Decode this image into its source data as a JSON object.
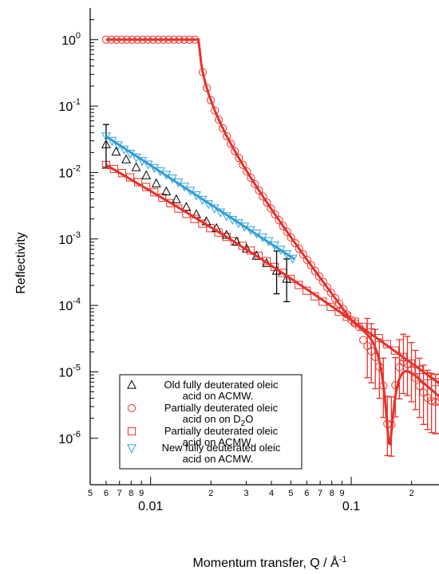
{
  "chart_data": {
    "type": "scatter",
    "title": "",
    "xlabel": "Momentum transfer, Q / Å",
    "xlabel_sup": "-1",
    "ylabel": "Reflectivity",
    "x_scale": "log",
    "y_scale": "log",
    "xlim": [
      0.005,
      0.3
    ],
    "ylim": [
      2e-07,
      3
    ],
    "legend_position": "bottom-left",
    "y_ticks": [
      {
        "mantissa": "10",
        "exp": "0",
        "value": 1
      },
      {
        "mantissa": "10",
        "exp": "-1",
        "value": 0.1
      },
      {
        "mantissa": "10",
        "exp": "-2",
        "value": 0.01
      },
      {
        "mantissa": "10",
        "exp": "-3",
        "value": 0.001
      },
      {
        "mantissa": "10",
        "exp": "-4",
        "value": 0.0001
      },
      {
        "mantissa": "10",
        "exp": "-5",
        "value": 1e-05
      },
      {
        "mantissa": "10",
        "exp": "-6",
        "value": 1e-06
      }
    ],
    "x_major_ticks": [
      {
        "label": "0.01",
        "value": 0.01
      },
      {
        "label": "0.1",
        "value": 0.1
      }
    ],
    "x_minor_ticks": [
      {
        "label": "5",
        "value": 0.005
      },
      {
        "label": "6",
        "value": 0.006
      },
      {
        "label": "7",
        "value": 0.007
      },
      {
        "label": "8",
        "value": 0.008
      },
      {
        "label": "9",
        "value": 0.009
      },
      {
        "label": "2",
        "value": 0.02
      },
      {
        "label": "3",
        "value": 0.03
      },
      {
        "label": "4",
        "value": 0.04
      },
      {
        "label": "5",
        "value": 0.05
      },
      {
        "label": "6",
        "value": 0.06
      },
      {
        "label": "7",
        "value": 0.07
      },
      {
        "label": "8",
        "value": 0.08
      },
      {
        "label": "9",
        "value": 0.09
      },
      {
        "label": "2",
        "value": 0.2
      }
    ],
    "series": [
      {
        "key": "old",
        "legend_lines": [
          "Old fully deuterated oleic",
          "acid on ACMW."
        ],
        "marker": "triangle-up",
        "color": "#000000",
        "q_range": [
          0.006,
          0.052
        ],
        "r_start": 0.025,
        "r_end": 0.0002,
        "step": 0.05,
        "err_from_q": 0.04,
        "fit": null
      },
      {
        "key": "partial_d2o",
        "legend_lines": [
          "Partially deuterated oleic",
          "acid on  on D",
          "O"
        ],
        "legend_sub": "2",
        "marker": "circle",
        "color": "#e8312a",
        "fit": {
          "color": "#e8312a"
        }
      },
      {
        "key": "partial_acmw",
        "legend_lines": [
          "Partially deuterated oleic",
          "acid on ACMW."
        ],
        "marker": "square",
        "color": "#e8312a",
        "q_range": [
          0.006,
          0.3
        ],
        "r_start": 0.013,
        "r_end": 5.5e-06,
        "step": 0.04,
        "fit": {
          "color": "#e8312a"
        }
      },
      {
        "key": "new",
        "legend_lines": [
          "New fully deuterated oleic",
          "acid on ACMW."
        ],
        "marker": "triangle-down",
        "color": "#2f9fd8",
        "q_range": [
          0.006,
          0.052
        ],
        "r_start": 0.035,
        "r_end": 0.0005,
        "step": 0.03,
        "fit": {
          "color": "#2f9fd8"
        }
      }
    ]
  }
}
